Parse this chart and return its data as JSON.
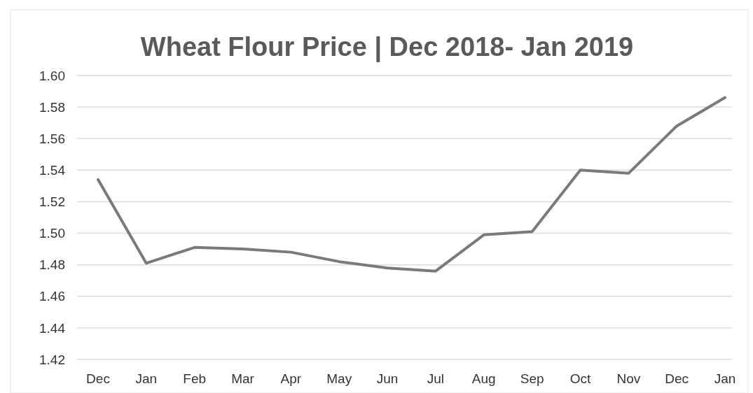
{
  "chart_data": {
    "type": "line",
    "title": "Wheat Flour Price | Dec 2018- Jan 2019",
    "categories": [
      "Dec",
      "Jan",
      "Feb",
      "Mar",
      "Apr",
      "May",
      "Jun",
      "Jul",
      "Aug",
      "Sep",
      "Oct",
      "Nov",
      "Dec",
      "Jan"
    ],
    "series": [
      {
        "color": "#7a7a7a",
        "values": [
          1.534,
          1.481,
          1.491,
          1.49,
          1.488,
          1.482,
          1.478,
          1.476,
          1.499,
          1.501,
          1.54,
          1.538,
          1.568,
          1.586
        ]
      }
    ],
    "ylim": [
      1.42,
      1.6
    ],
    "yticks": [
      {
        "value": 1.42,
        "label": "1.42"
      },
      {
        "value": 1.44,
        "label": "1.44"
      },
      {
        "value": 1.46,
        "label": "1.46"
      },
      {
        "value": 1.48,
        "label": "1.48"
      },
      {
        "value": 1.5,
        "label": "1.50"
      },
      {
        "value": 1.52,
        "label": "1.52"
      },
      {
        "value": 1.54,
        "label": "1.54"
      },
      {
        "value": 1.56,
        "label": "1.56"
      },
      {
        "value": 1.58,
        "label": "1.58"
      },
      {
        "value": 1.6,
        "label": "1.60"
      }
    ],
    "grid": "y",
    "line_style": "solid",
    "marker": "none"
  }
}
